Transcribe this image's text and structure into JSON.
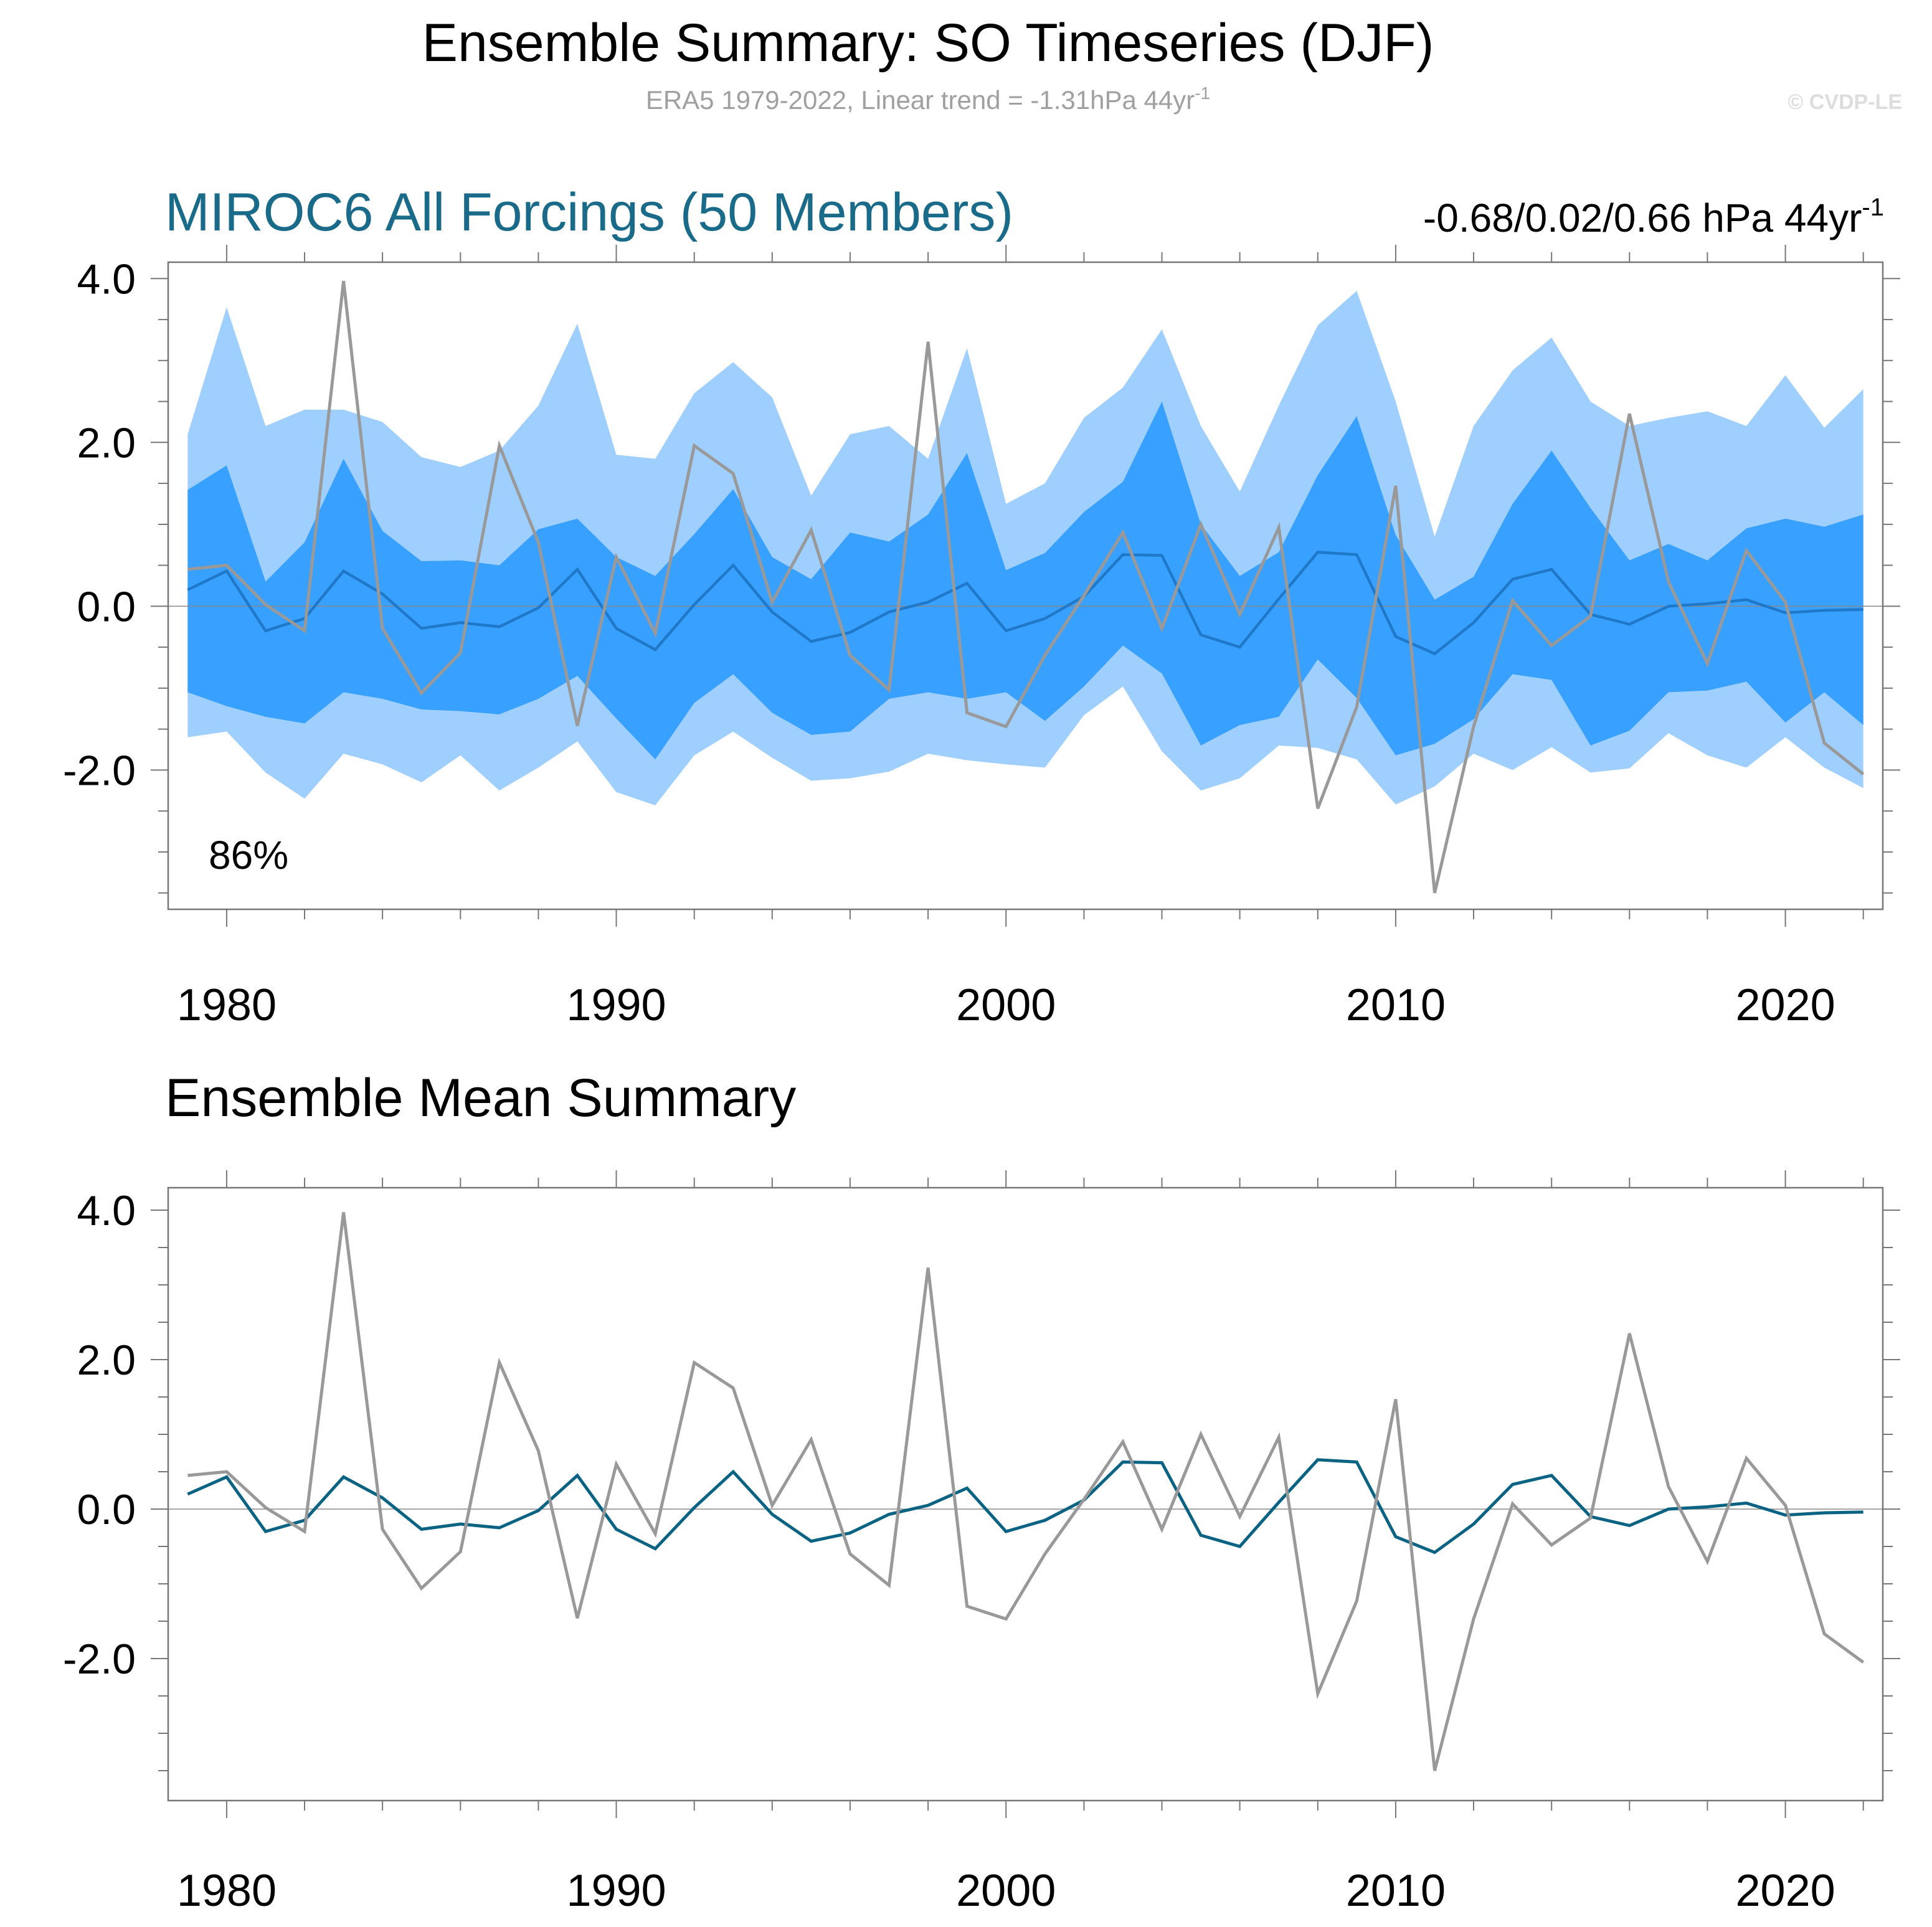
{
  "title": "Ensemble Summary: SO Timeseries (DJF)",
  "subtitle": {
    "text": "ERA5 1979-2022, Linear trend = -1.31hPa 44yr",
    "superscript": "-1"
  },
  "copyright": "© CVDP-LE",
  "colors": {
    "band_outer": "#9fcfff",
    "band_inner": "#38a0ff",
    "ensemble_mean_top": "#1f78c8",
    "ensemble_mean_bottom": "#0b6383",
    "observations": "#999999",
    "model_title": "#1a6a8a",
    "axis": "#777777",
    "zero_line": "#888888"
  },
  "panel1": {
    "title": "MIROC6 All Forcings (50 Members)",
    "trend": {
      "text": "-0.68/0.02/0.66 hPa 44yr",
      "superscript": "-1"
    },
    "percent_label": "86%"
  },
  "panel2": {
    "title": "Ensemble Mean Summary"
  },
  "chart_data": [
    {
      "type": "area",
      "panel": "panel1",
      "x_ticks": [
        1980,
        1990,
        2000,
        2010,
        2020
      ],
      "x_tick_labels": [
        "1980",
        "1990",
        "2000",
        "2010",
        "2020"
      ],
      "y_ticks": [
        4.0,
        2.0,
        0.0,
        -2.0
      ],
      "y_tick_labels": [
        "4.0",
        "2.0",
        "0.0",
        "-2.0"
      ],
      "xlim": [
        1978.5,
        2022.5
      ],
      "ylim": [
        -3.7,
        4.2
      ],
      "years": [
        1979,
        1980,
        1981,
        1982,
        1983,
        1984,
        1985,
        1986,
        1987,
        1988,
        1989,
        1990,
        1991,
        1992,
        1993,
        1994,
        1995,
        1996,
        1997,
        1998,
        1999,
        2000,
        2001,
        2002,
        2003,
        2004,
        2005,
        2006,
        2007,
        2008,
        2009,
        2010,
        2011,
        2012,
        2013,
        2014,
        2015,
        2016,
        2017,
        2018,
        2019,
        2020,
        2021,
        2022
      ],
      "bands": {
        "outer_upper": [
          2.1,
          3.65,
          2.2,
          2.4,
          2.4,
          2.25,
          1.82,
          1.7,
          1.9,
          2.45,
          3.45,
          1.85,
          1.8,
          2.6,
          2.98,
          2.55,
          1.35,
          2.1,
          2.2,
          1.8,
          3.15,
          1.25,
          1.5,
          2.3,
          2.67,
          3.38,
          2.2,
          1.4,
          2.45,
          3.43,
          3.85,
          2.5,
          0.85,
          2.2,
          2.88,
          3.28,
          2.5,
          2.2,
          2.3,
          2.38,
          2.2,
          2.82,
          2.18,
          2.65
        ],
        "inner_upper": [
          1.42,
          1.72,
          0.3,
          0.78,
          1.8,
          0.92,
          0.55,
          0.56,
          0.5,
          0.94,
          1.07,
          0.6,
          0.37,
          0.88,
          1.43,
          0.6,
          0.33,
          0.9,
          0.79,
          1.12,
          1.87,
          0.44,
          0.65,
          1.15,
          1.52,
          2.5,
          1.0,
          0.37,
          0.66,
          1.6,
          2.32,
          0.87,
          0.08,
          0.36,
          1.25,
          1.9,
          1.2,
          0.56,
          0.76,
          0.56,
          0.95,
          1.07,
          0.97,
          1.12
        ],
        "inner_lower": [
          -1.05,
          -1.22,
          -1.35,
          -1.43,
          -1.05,
          -1.13,
          -1.26,
          -1.28,
          -1.32,
          -1.13,
          -0.85,
          -1.37,
          -1.87,
          -1.18,
          -0.83,
          -1.3,
          -1.57,
          -1.53,
          -1.13,
          -1.05,
          -1.13,
          -1.05,
          -1.4,
          -0.98,
          -0.48,
          -0.82,
          -1.7,
          -1.45,
          -1.35,
          -0.65,
          -1.12,
          -1.82,
          -1.68,
          -1.38,
          -0.83,
          -0.9,
          -1.7,
          -1.52,
          -1.05,
          -1.03,
          -0.92,
          -1.42,
          -1.05,
          -1.45
        ],
        "outer_lower": [
          -1.6,
          -1.53,
          -2.03,
          -2.35,
          -1.8,
          -1.93,
          -2.15,
          -1.82,
          -2.25,
          -1.97,
          -1.65,
          -2.27,
          -2.43,
          -1.82,
          -1.53,
          -1.85,
          -2.13,
          -2.1,
          -2.02,
          -1.8,
          -1.88,
          -1.93,
          -1.97,
          -1.33,
          -0.98,
          -1.77,
          -2.25,
          -2.1,
          -1.7,
          -1.73,
          -1.87,
          -2.42,
          -2.2,
          -1.8,
          -2.0,
          -1.72,
          -2.03,
          -1.98,
          -1.55,
          -1.82,
          -1.97,
          -1.6,
          -1.97,
          -2.22
        ]
      },
      "series": [
        {
          "name": "ensemble_mean",
          "values": [
            0.2,
            0.43,
            -0.3,
            -0.15,
            0.43,
            0.15,
            -0.27,
            -0.2,
            -0.25,
            -0.02,
            0.45,
            -0.27,
            -0.53,
            0.02,
            0.5,
            -0.07,
            -0.43,
            -0.32,
            -0.07,
            0.05,
            0.28,
            -0.3,
            -0.15,
            0.12,
            0.63,
            0.62,
            -0.35,
            -0.5,
            0.09,
            0.66,
            0.63,
            -0.37,
            -0.58,
            -0.2,
            0.33,
            0.45,
            -0.1,
            -0.22,
            0.0,
            0.03,
            0.08,
            -0.08,
            -0.05,
            -0.04
          ]
        },
        {
          "name": "ERA5",
          "values": [
            0.45,
            0.5,
            0.02,
            -0.3,
            3.97,
            -0.27,
            -1.06,
            -0.57,
            1.96,
            0.78,
            -1.46,
            0.6,
            -0.33,
            1.96,
            1.62,
            0.05,
            0.93,
            -0.6,
            -1.02,
            3.23,
            -1.3,
            -1.47,
            -0.6,
            0.13,
            0.9,
            -0.27,
            1.0,
            -0.1,
            0.96,
            -2.47,
            -1.23,
            1.47,
            -3.5,
            -1.47,
            0.07,
            -0.48,
            -0.12,
            2.35,
            0.3,
            -0.7,
            0.68,
            0.05,
            -1.67,
            -2.05
          ]
        }
      ]
    },
    {
      "type": "line",
      "panel": "panel2",
      "x_ticks": [
        1980,
        1990,
        2000,
        2010,
        2020
      ],
      "x_tick_labels": [
        "1980",
        "1990",
        "2000",
        "2010",
        "2020"
      ],
      "y_ticks": [
        4.0,
        2.0,
        0.0,
        -2.0
      ],
      "y_tick_labels": [
        "4.0",
        "2.0",
        "0.0",
        "-2.0"
      ],
      "xlim": [
        1978.5,
        2022.5
      ],
      "ylim": [
        -3.9,
        4.3
      ],
      "years": [
        1979,
        1980,
        1981,
        1982,
        1983,
        1984,
        1985,
        1986,
        1987,
        1988,
        1989,
        1990,
        1991,
        1992,
        1993,
        1994,
        1995,
        1996,
        1997,
        1998,
        1999,
        2000,
        2001,
        2002,
        2003,
        2004,
        2005,
        2006,
        2007,
        2008,
        2009,
        2010,
        2011,
        2012,
        2013,
        2014,
        2015,
        2016,
        2017,
        2018,
        2019,
        2020,
        2021,
        2022
      ],
      "series": [
        {
          "name": "ensemble_mean",
          "values": [
            0.2,
            0.43,
            -0.3,
            -0.15,
            0.43,
            0.15,
            -0.27,
            -0.2,
            -0.25,
            -0.02,
            0.45,
            -0.27,
            -0.53,
            0.02,
            0.5,
            -0.07,
            -0.43,
            -0.32,
            -0.07,
            0.05,
            0.28,
            -0.3,
            -0.15,
            0.12,
            0.63,
            0.62,
            -0.35,
            -0.5,
            0.09,
            0.66,
            0.63,
            -0.37,
            -0.58,
            -0.2,
            0.33,
            0.45,
            -0.1,
            -0.22,
            0.0,
            0.03,
            0.08,
            -0.08,
            -0.05,
            -0.04
          ]
        },
        {
          "name": "ERA5",
          "values": [
            0.45,
            0.5,
            0.02,
            -0.3,
            3.97,
            -0.27,
            -1.06,
            -0.57,
            1.96,
            0.78,
            -1.46,
            0.6,
            -0.33,
            1.96,
            1.62,
            0.05,
            0.93,
            -0.6,
            -1.02,
            3.23,
            -1.3,
            -1.47,
            -0.6,
            0.13,
            0.9,
            -0.27,
            1.0,
            -0.1,
            0.96,
            -2.47,
            -1.23,
            1.47,
            -3.5,
            -1.47,
            0.07,
            -0.48,
            -0.12,
            2.35,
            0.3,
            -0.7,
            0.68,
            0.05,
            -1.67,
            -2.05
          ]
        }
      ]
    }
  ]
}
